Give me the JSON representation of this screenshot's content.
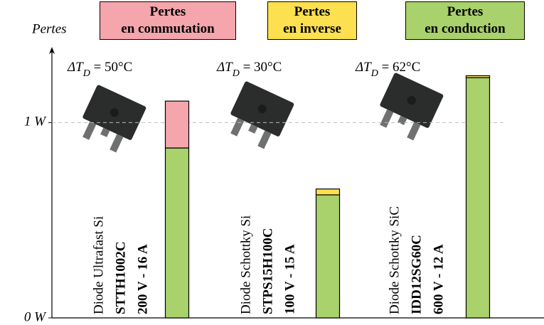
{
  "chart_data": {
    "type": "stacked-bar",
    "y_label": "Pertes",
    "categories": [
      [
        "Diode Ultrafast Si",
        "STTH1002C",
        "200 V - 16 A"
      ],
      [
        "Diode Schottky Si",
        "STPS15H100C",
        "100 V - 15 A"
      ],
      [
        "Diode Schottky SiC",
        "IDD12SG60C",
        "600 V - 12 A"
      ]
    ],
    "annotations": [
      {
        "main": "ΔT",
        "sub": "D",
        "rest": " = 50°C"
      },
      {
        "main": "ΔT",
        "sub": "D",
        "rest": " = 30°C"
      },
      {
        "main": "ΔT",
        "sub": "D",
        "rest": " = 62°C"
      }
    ],
    "series": [
      {
        "name": "Pertes\nen commutation",
        "color": "#f4a6ac",
        "values": [
          0.24,
          0,
          0
        ]
      },
      {
        "name": "Pertes\nen inverse",
        "color": "#fce04f",
        "values": [
          0,
          0.03,
          0.01
        ]
      },
      {
        "name": "Pertes\nen conduction",
        "color": "#a9d16c",
        "values": [
          0.87,
          0.63,
          1.23
        ]
      }
    ],
    "ylim": [
      0,
      1.38
    ],
    "yticks": [
      {
        "value": 0,
        "label": "0 W"
      },
      {
        "value": 1,
        "label": "1 W"
      }
    ],
    "grid": true
  }
}
